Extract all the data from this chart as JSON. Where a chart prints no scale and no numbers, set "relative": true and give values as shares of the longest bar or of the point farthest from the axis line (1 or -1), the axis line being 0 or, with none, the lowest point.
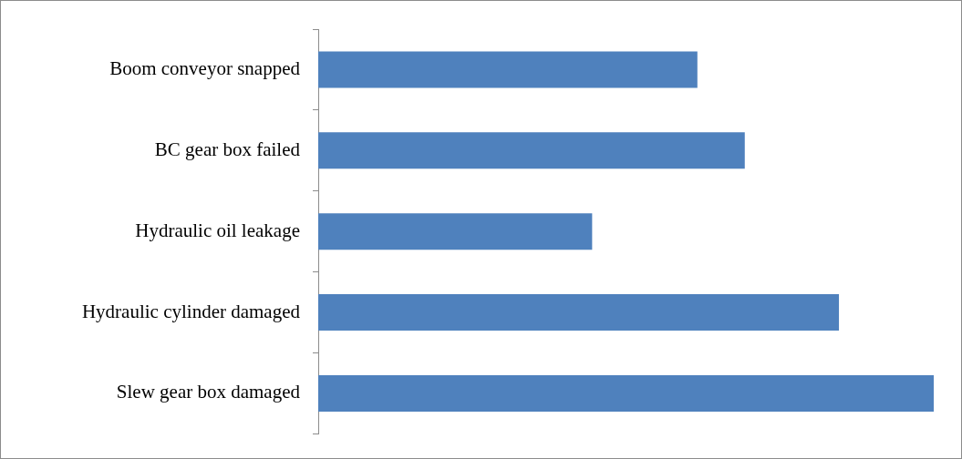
{
  "chart_data": {
    "type": "bar",
    "orientation": "horizontal",
    "relative": true,
    "categories": [
      "Boom conveyor snapped",
      "BC gear box failed",
      "Hydraulic oil leakage",
      "Hydraulic cylinder damaged",
      "Slew gear box damaged"
    ],
    "values": [
      0.616,
      0.693,
      0.445,
      0.846,
      1
    ],
    "color": "#4f81bd"
  }
}
